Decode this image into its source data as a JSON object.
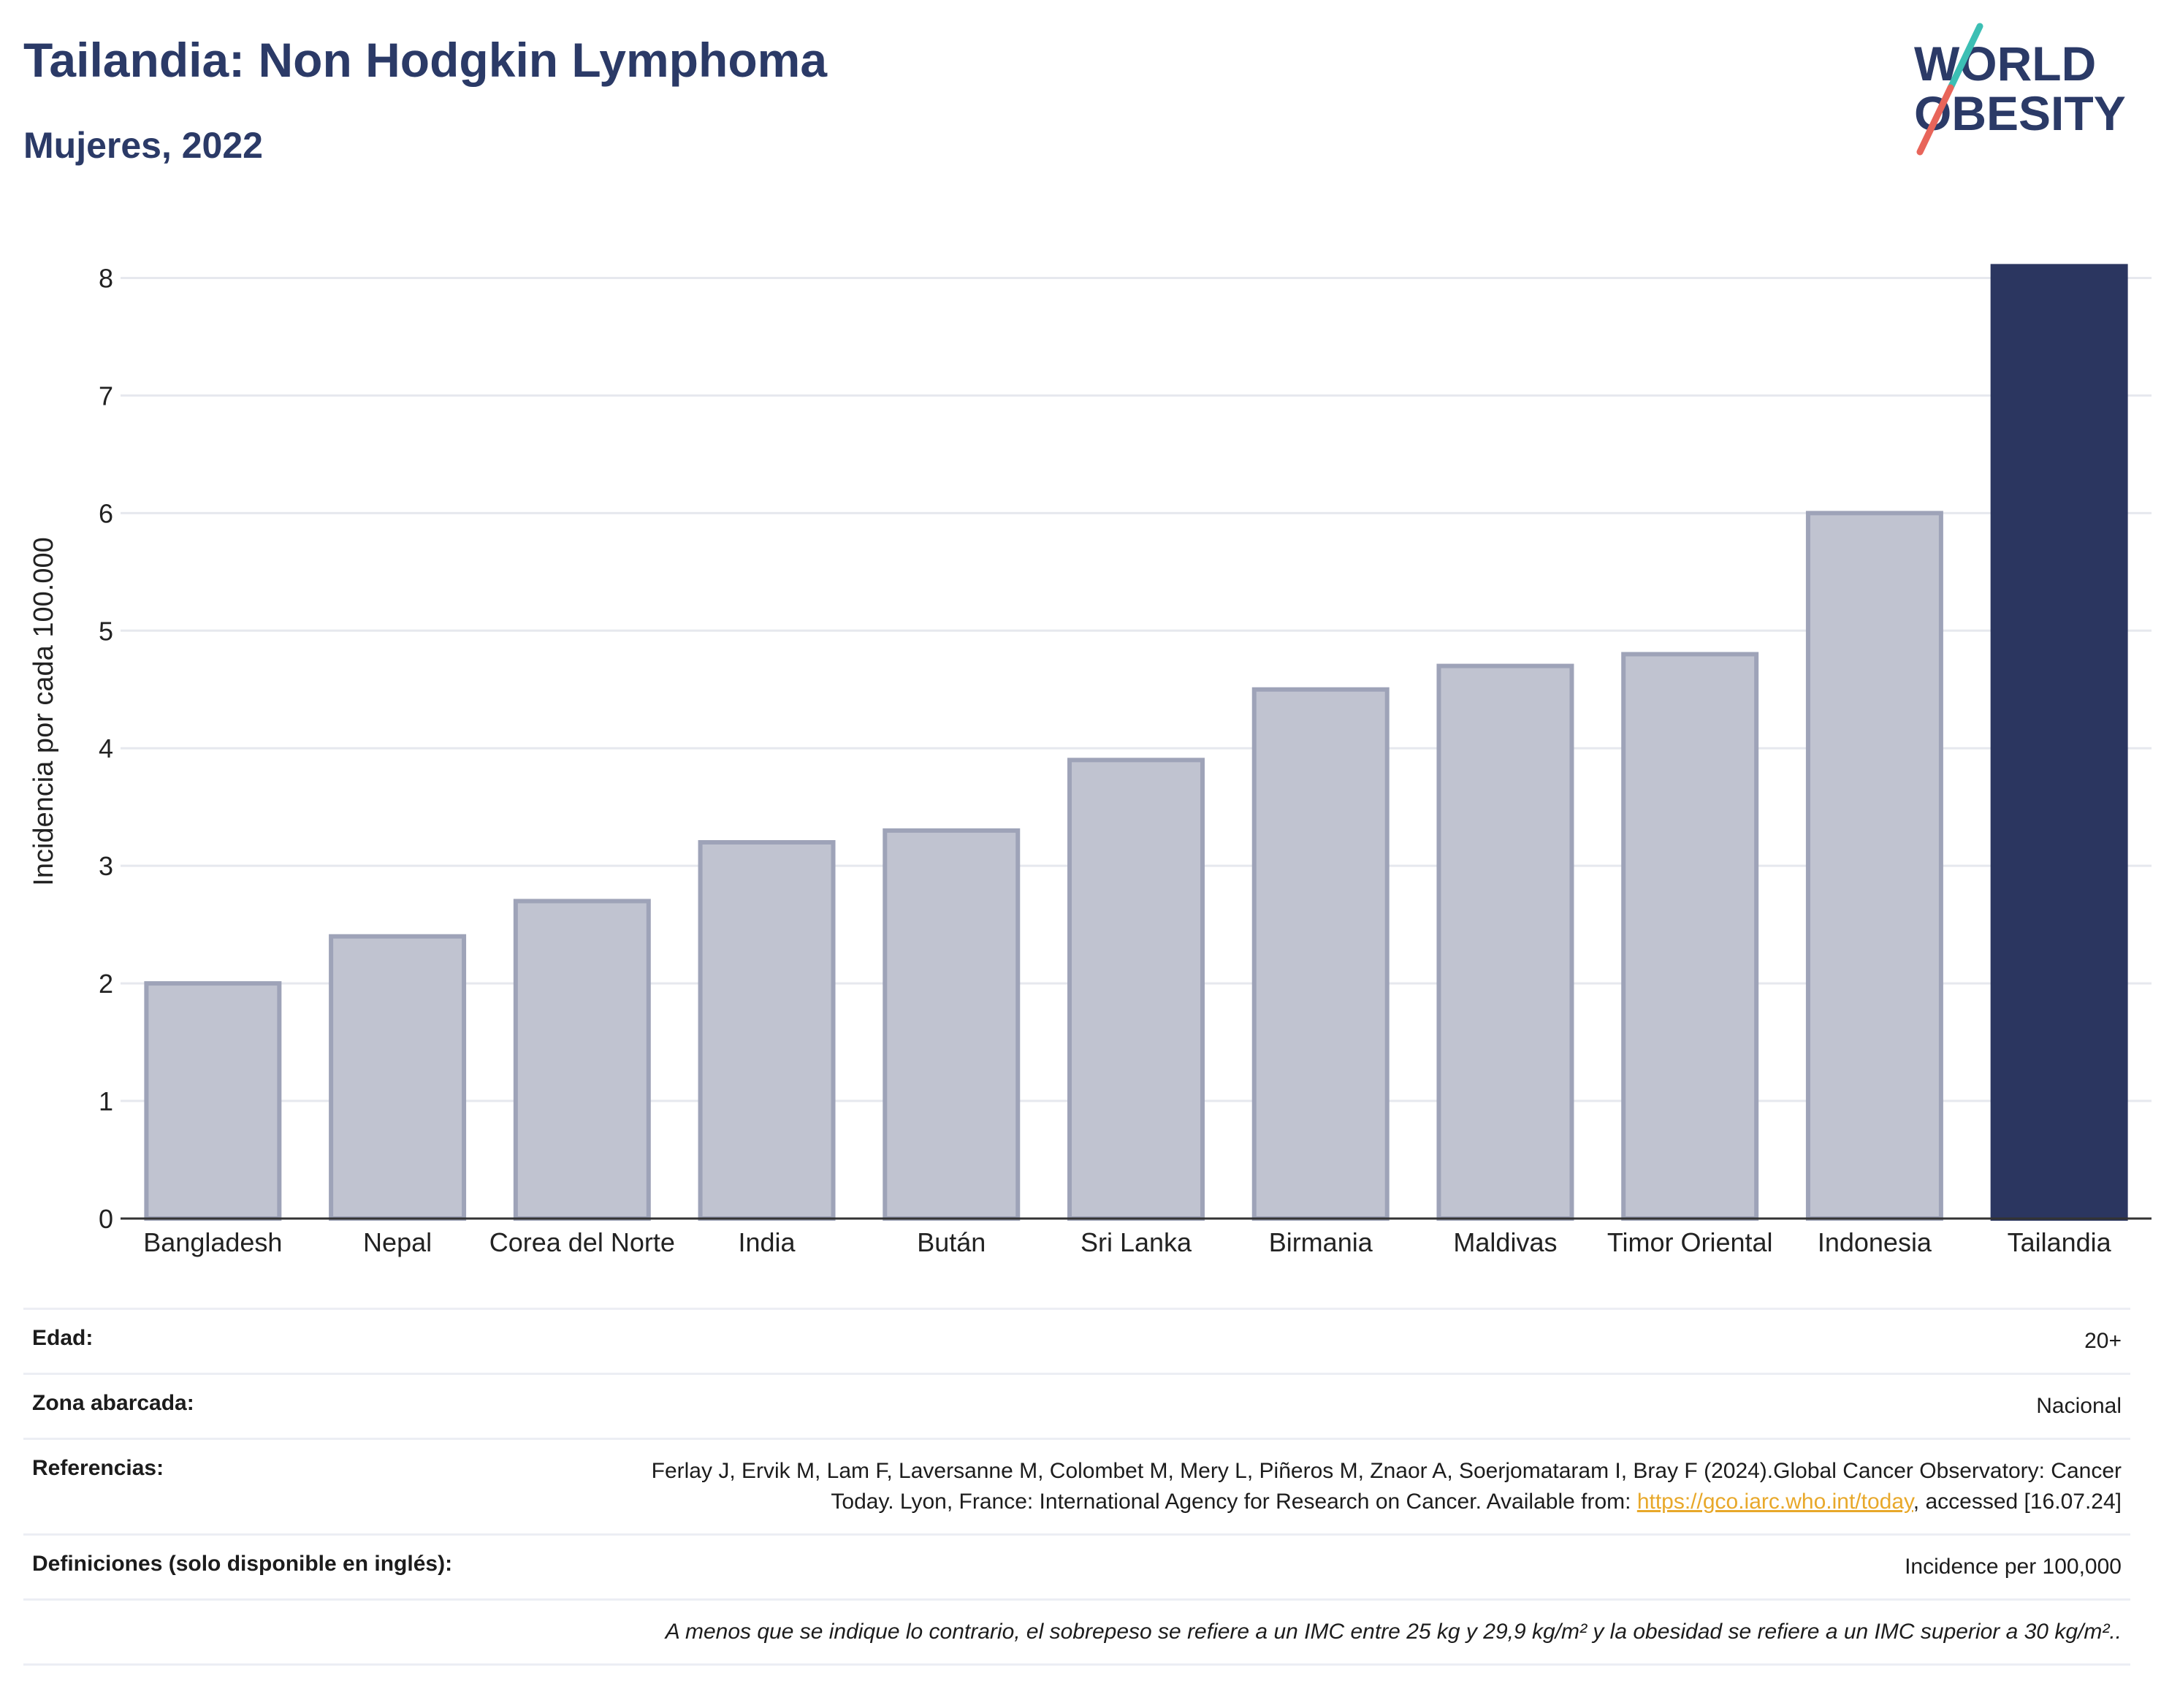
{
  "header": {
    "title": "Tailandia: Non Hodgkin Lymphoma",
    "subtitle": "Mujeres, 2022"
  },
  "logo": {
    "line1": "WORLD",
    "line2": "OBESITY",
    "slash_color_top": "#3cbfb4",
    "slash_color_bottom": "#e8655a"
  },
  "chart_data": {
    "type": "bar",
    "categories": [
      "Bangladesh",
      "Nepal",
      "Corea del Norte",
      "India",
      "Bután",
      "Sri Lanka",
      "Birmania",
      "Maldivas",
      "Timor Oriental",
      "Indonesia",
      "Tailandia"
    ],
    "values": [
      2.0,
      2.4,
      2.7,
      3.2,
      3.3,
      3.9,
      4.5,
      4.7,
      4.8,
      6.0,
      8.1
    ],
    "highlight": "Tailandia",
    "ylabel": "Incidencia por cada 100.000",
    "xlabel": "",
    "ylim": [
      0,
      8.5
    ],
    "yticks": [
      0,
      1,
      2,
      3,
      4,
      5,
      6,
      7,
      8
    ],
    "grid": true,
    "colors": {
      "bar": "#c0c3d0",
      "bar_edge": "#9ea3b8",
      "highlight": "#2b3660"
    }
  },
  "info": {
    "age_label": "Edad:",
    "age_value": "20+",
    "area_label": "Zona abarcada:",
    "area_value": "Nacional",
    "refs_label": "Referencias:",
    "refs_text_1": "Ferlay J, Ervik M, Lam F, Laversanne M, Colombet M, Mery L, Piñeros M, Znaor A, Soerjomataram I, Bray F (2024).Global Cancer Observatory: Cancer Today. Lyon, France: International Agency for Research on Cancer. Available from: ",
    "refs_link": "https://gco.iarc.who.int/today",
    "refs_text_2": ", accessed [16.07.24]",
    "defs_label": "Definiciones (solo disponible en inglés):",
    "defs_value": "Incidence per 100,000",
    "note": "A menos que se indique lo contrario, el sobrepeso se refiere a un IMC entre 25 kg y 29,9 kg/m² y la obesidad se refiere a un IMC superior a 30 kg/m².."
  }
}
